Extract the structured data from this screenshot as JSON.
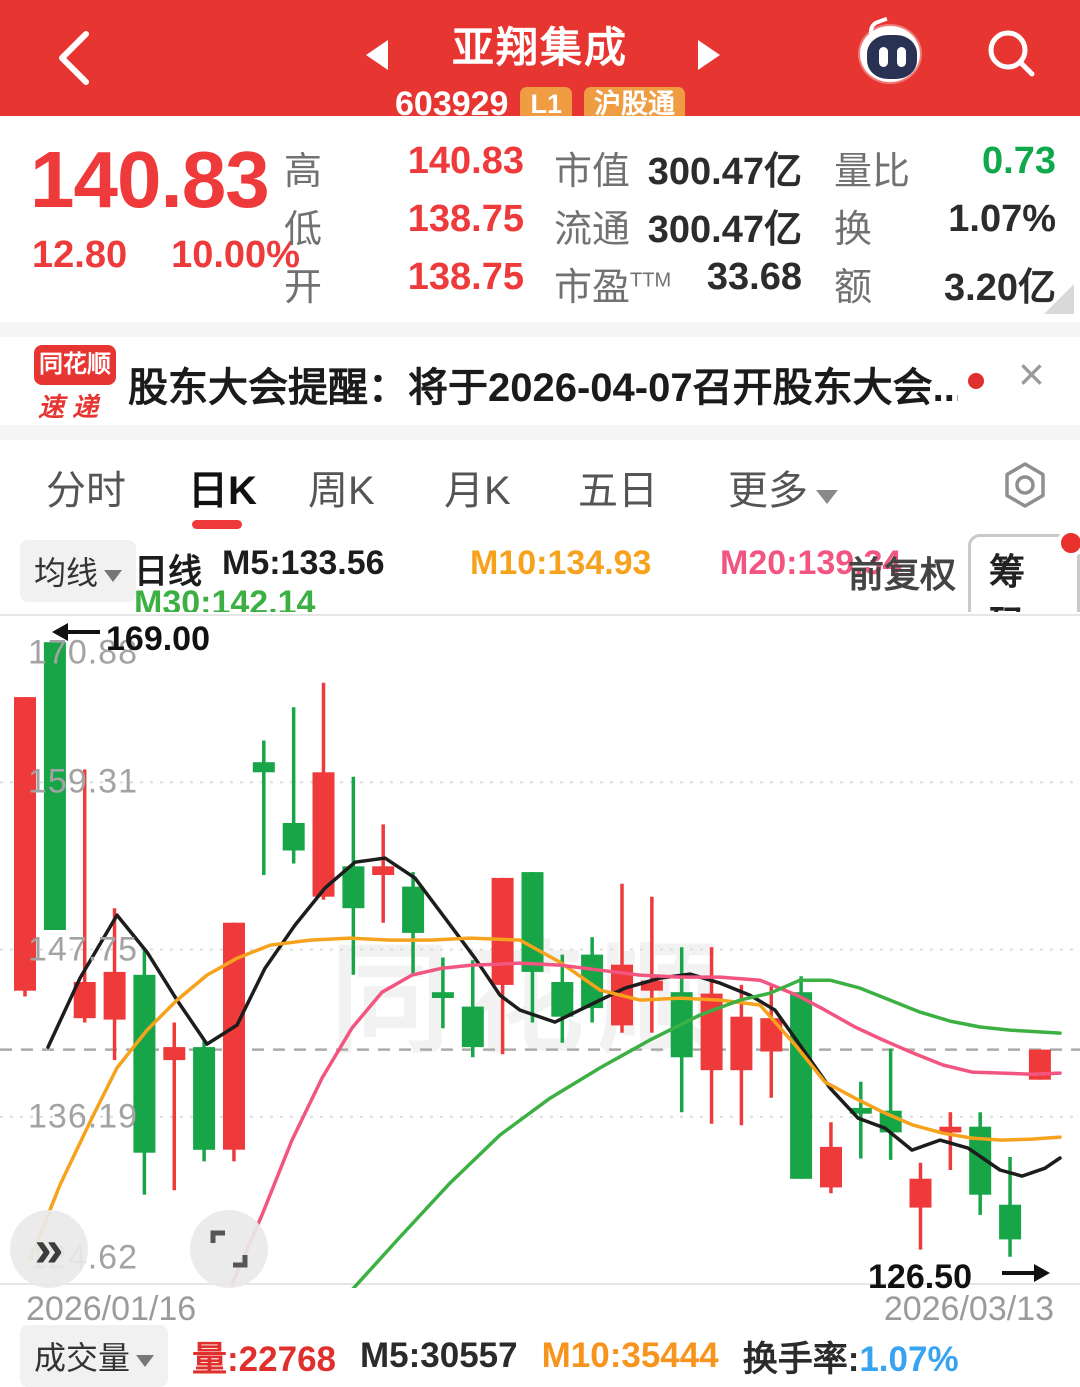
{
  "colors": {
    "header_red": "#E73632",
    "up_red": "#EE3A3A",
    "down_green": "#17A548",
    "badge_orange": "#EF9C43",
    "ma5_black": "#1d1d1d",
    "ma10_orange": "#F7A21C",
    "ma20_pink": "#F2557F",
    "ma30_green": "#3CB043",
    "turnover_blue": "#38A3F1",
    "quantity_ratio_green": "#0FA94B",
    "grid_dotted": "#DCDCDC",
    "dashed_ref": "#ABABAB"
  },
  "header": {
    "title": "亚翔集成",
    "code": "603929",
    "badges": [
      "L1",
      "沪股通"
    ]
  },
  "stats": {
    "price": "140.83",
    "change": "12.80",
    "change_pct": "10.00%",
    "left_rows": [
      {
        "label": "高",
        "value": "140.83"
      },
      {
        "label": "低",
        "value": "138.75"
      },
      {
        "label": "开",
        "value": "138.75"
      }
    ],
    "mid_rows": [
      {
        "label": "市值",
        "value": "300.47亿"
      },
      {
        "label": "流通",
        "value": "300.47亿"
      },
      {
        "label": "市盈",
        "label_sup": "TTM",
        "value": "33.68"
      }
    ],
    "right_rows": [
      {
        "label": "量比",
        "value": "0.73"
      },
      {
        "label": "换",
        "value": "1.07%"
      },
      {
        "label": "额",
        "value": "3.20亿"
      }
    ]
  },
  "banner": {
    "logo_line1": "同花顺",
    "logo_line2": "速递",
    "text": "股东大会提醒：将于2026-04-07召开股东大会...",
    "close": "×"
  },
  "tabs": {
    "items": [
      "分时",
      "日K",
      "周K",
      "月K",
      "五日",
      "更多"
    ],
    "active": "日K"
  },
  "indicator": {
    "ma_button": "均线",
    "period": "日线",
    "m5": "M5:133.56",
    "m10": "M10:134.93",
    "m20": "M20:139.34",
    "m30": "M30:142.14",
    "adjust": "前复权",
    "chips_button": "筹码"
  },
  "chart": {
    "type": "candlestick",
    "axis": {
      "top_price": 170.88,
      "bottom_price": 124.62,
      "labels": [
        "170.88",
        "159.31",
        "147.75",
        "136.19",
        "124.62"
      ],
      "grid_prices": [
        159.31,
        147.75,
        136.19
      ],
      "dashed_ref_price": 140.83
    },
    "annotations": {
      "high_marker": "169.00",
      "low_marker": "126.50"
    },
    "dates": {
      "start": "2026/01/16",
      "end": "2026/03/13"
    },
    "watermark": "同花顺",
    "candles": [
      {
        "o": 144.9,
        "h": 165.2,
        "l": 144.5,
        "c": 165.2
      },
      {
        "o": 169.0,
        "h": 169.0,
        "l": 149.1,
        "c": 149.1
      },
      {
        "o": 143.0,
        "h": 160.2,
        "l": 142.7,
        "c": 145.5
      },
      {
        "o": 142.9,
        "h": 150.6,
        "l": 140.1,
        "c": 146.2
      },
      {
        "o": 146.0,
        "h": 147.7,
        "l": 130.8,
        "c": 133.7
      },
      {
        "o": 140.1,
        "h": 142.7,
        "l": 131.1,
        "c": 141.0
      },
      {
        "o": 141.0,
        "h": 141.5,
        "l": 133.1,
        "c": 133.9
      },
      {
        "o": 133.9,
        "h": 149.6,
        "l": 133.1,
        "c": 149.6
      },
      {
        "o": 160.7,
        "h": 162.2,
        "l": 152.9,
        "c": 160.0
      },
      {
        "o": 156.5,
        "h": 164.5,
        "l": 153.7,
        "c": 154.6
      },
      {
        "o": 151.4,
        "h": 166.2,
        "l": 151.2,
        "c": 160.0
      },
      {
        "o": 153.5,
        "h": 159.7,
        "l": 146.0,
        "c": 150.6
      },
      {
        "o": 152.9,
        "h": 156.4,
        "l": 149.6,
        "c": 153.5
      },
      {
        "o": 152.1,
        "h": 153.1,
        "l": 146.1,
        "c": 148.9
      },
      {
        "o": 144.8,
        "h": 147.2,
        "l": 142.3,
        "c": 144.4
      },
      {
        "o": 143.8,
        "h": 147.0,
        "l": 140.3,
        "c": 141.0
      },
      {
        "o": 145.3,
        "h": 152.7,
        "l": 140.5,
        "c": 152.7
      },
      {
        "o": 153.1,
        "h": 153.1,
        "l": 142.7,
        "c": 146.2
      },
      {
        "o": 145.5,
        "h": 147.4,
        "l": 141.3,
        "c": 143.1
      },
      {
        "o": 147.4,
        "h": 148.6,
        "l": 142.7,
        "c": 143.7
      },
      {
        "o": 142.5,
        "h": 152.3,
        "l": 142.0,
        "c": 146.7
      },
      {
        "o": 144.9,
        "h": 151.4,
        "l": 142.0,
        "c": 145.6
      },
      {
        "o": 144.8,
        "h": 147.9,
        "l": 136.5,
        "c": 140.3
      },
      {
        "o": 139.4,
        "h": 147.9,
        "l": 135.7,
        "c": 144.7
      },
      {
        "o": 139.4,
        "h": 145.3,
        "l": 135.6,
        "c": 143.1
      },
      {
        "o": 140.7,
        "h": 145.2,
        "l": 137.5,
        "c": 143.0
      },
      {
        "o": 144.8,
        "h": 145.9,
        "l": 131.9,
        "c": 131.9
      },
      {
        "o": 131.3,
        "h": 135.8,
        "l": 130.9,
        "c": 134.1
      },
      {
        "o": 136.8,
        "h": 138.6,
        "l": 133.3,
        "c": 136.4
      },
      {
        "o": 136.6,
        "h": 140.9,
        "l": 133.2,
        "c": 135.1
      },
      {
        "o": 129.9,
        "h": 133.0,
        "l": 127.0,
        "c": 131.9
      },
      {
        "o": 135.1,
        "h": 136.5,
        "l": 132.5,
        "c": 135.5
      },
      {
        "o": 135.5,
        "h": 136.5,
        "l": 129.4,
        "c": 130.8
      },
      {
        "o": 130.1,
        "h": 133.4,
        "l": 126.5,
        "c": 127.7
      },
      {
        "o": 138.75,
        "h": 140.83,
        "l": 138.75,
        "c": 140.83
      }
    ],
    "ma_series": [
      {
        "name": "M5",
        "color": "#1d1d1d",
        "points": [
          [
            48,
            141.0
          ],
          [
            80,
            145.77
          ],
          [
            117,
            150.13
          ],
          [
            147,
            147.57
          ],
          [
            177,
            144.25
          ],
          [
            207,
            141.21
          ],
          [
            237,
            142.52
          ],
          [
            265,
            146.46
          ],
          [
            295,
            149.44
          ],
          [
            325,
            152.0
          ],
          [
            355,
            153.79
          ],
          [
            385,
            154.07
          ],
          [
            415,
            152.69
          ],
          [
            445,
            149.92
          ],
          [
            475,
            147.15
          ],
          [
            500,
            144.59
          ],
          [
            520,
            143.56
          ],
          [
            555,
            142.73
          ],
          [
            590,
            143.91
          ],
          [
            625,
            145.08
          ],
          [
            660,
            145.77
          ],
          [
            690,
            146.05
          ],
          [
            720,
            145.43
          ],
          [
            750,
            144.59
          ],
          [
            775,
            143.56
          ],
          [
            800,
            141.14
          ],
          [
            830,
            138.17
          ],
          [
            858,
            136.09
          ],
          [
            885,
            135.4
          ],
          [
            912,
            133.88
          ],
          [
            940,
            134.57
          ],
          [
            968,
            134.02
          ],
          [
            1000,
            132.5
          ],
          [
            1022,
            132.08
          ],
          [
            1045,
            132.63
          ],
          [
            1060,
            133.33
          ]
        ]
      },
      {
        "name": "M10",
        "color": "#F7A21C",
        "points": [
          [
            30,
            126.28
          ],
          [
            60,
            131.47
          ],
          [
            90,
            135.82
          ],
          [
            117,
            139.56
          ],
          [
            147,
            142.18
          ],
          [
            177,
            144.25
          ],
          [
            207,
            145.98
          ],
          [
            237,
            147.15
          ],
          [
            270,
            148.05
          ],
          [
            310,
            148.4
          ],
          [
            350,
            148.54
          ],
          [
            390,
            148.4
          ],
          [
            430,
            148.4
          ],
          [
            470,
            148.54
          ],
          [
            520,
            148.4
          ],
          [
            560,
            146.87
          ],
          [
            600,
            144.94
          ],
          [
            640,
            144.25
          ],
          [
            680,
            144.39
          ],
          [
            720,
            144.25
          ],
          [
            760,
            143.91
          ],
          [
            797,
            141.0
          ],
          [
            825,
            138.58
          ],
          [
            855,
            137.47
          ],
          [
            883,
            136.5
          ],
          [
            913,
            135.61
          ],
          [
            943,
            135.05
          ],
          [
            972,
            134.71
          ],
          [
            1002,
            134.57
          ],
          [
            1032,
            134.64
          ],
          [
            1060,
            134.78
          ]
        ]
      },
      {
        "name": "M20",
        "color": "#F2557F",
        "points": [
          [
            232,
            124.62
          ],
          [
            262,
            129.39
          ],
          [
            292,
            134.57
          ],
          [
            322,
            138.86
          ],
          [
            352,
            142.32
          ],
          [
            382,
            144.8
          ],
          [
            412,
            145.98
          ],
          [
            442,
            146.46
          ],
          [
            472,
            146.67
          ],
          [
            500,
            146.74
          ],
          [
            520,
            146.81
          ],
          [
            560,
            146.67
          ],
          [
            600,
            146.32
          ],
          [
            640,
            145.98
          ],
          [
            680,
            145.84
          ],
          [
            720,
            145.84
          ],
          [
            760,
            145.63
          ],
          [
            797,
            144.59
          ],
          [
            825,
            143.56
          ],
          [
            855,
            142.39
          ],
          [
            883,
            141.49
          ],
          [
            913,
            140.59
          ],
          [
            943,
            139.76
          ],
          [
            972,
            139.27
          ],
          [
            1002,
            139.2
          ],
          [
            1032,
            139.13
          ],
          [
            1060,
            139.2
          ]
        ]
      },
      {
        "name": "M30",
        "color": "#3CB043",
        "points": [
          [
            352,
            124.21
          ],
          [
            400,
            127.87
          ],
          [
            450,
            131.6
          ],
          [
            500,
            134.92
          ],
          [
            550,
            137.47
          ],
          [
            600,
            139.56
          ],
          [
            650,
            141.49
          ],
          [
            700,
            143.22
          ],
          [
            740,
            144.25
          ],
          [
            770,
            144.73
          ],
          [
            800,
            145.63
          ],
          [
            830,
            145.63
          ],
          [
            860,
            145.08
          ],
          [
            890,
            144.25
          ],
          [
            920,
            143.42
          ],
          [
            950,
            142.8
          ],
          [
            980,
            142.39
          ],
          [
            1010,
            142.18
          ],
          [
            1060,
            141.97
          ]
        ]
      }
    ]
  },
  "volume_bar": {
    "button": "成交量",
    "vol": "量:22768",
    "m5": "M5:30557",
    "m10": "M10:35444",
    "turnover_label": "换手率:",
    "turnover_value": "1.07%"
  }
}
